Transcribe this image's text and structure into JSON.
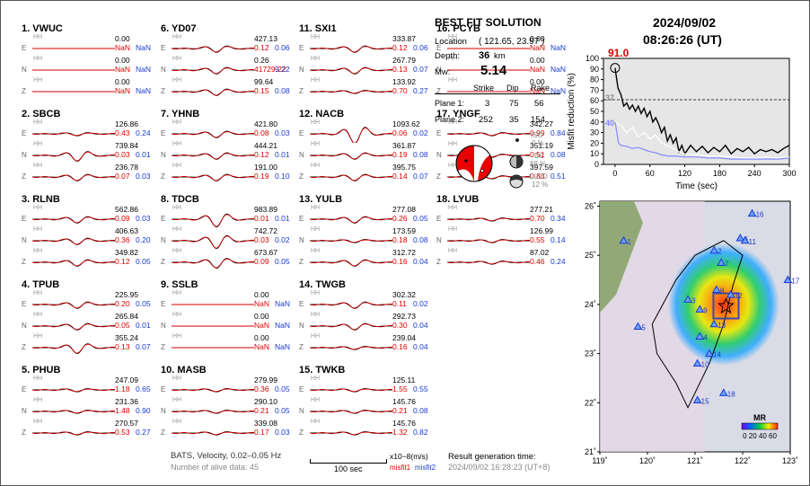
{
  "stations": [
    {
      "title": "1.  VWUC",
      "c": [
        {
          "amp": "0.00",
          "m1": "NaN",
          "m2": "NaN",
          "w": 0
        },
        {
          "amp": "0.00",
          "m1": "NaN",
          "m2": "NaN",
          "w": 0
        },
        {
          "amp": "0.00",
          "m1": "NaN",
          "m2": "NaN",
          "w": 0
        }
      ]
    },
    {
      "title": "2.  SBCB",
      "c": [
        {
          "amp": "126.86",
          "m1": "0.43",
          "m2": "0.24",
          "w": 1
        },
        {
          "amp": "739.84",
          "m1": "0.03",
          "m2": "0.01",
          "w": 3
        },
        {
          "amp": "236.78",
          "m1": "0.07",
          "m2": "0.03",
          "w": 2
        }
      ]
    },
    {
      "title": "3.  RLNB",
      "c": [
        {
          "amp": "562.86",
          "m1": "0.09",
          "m2": "0.03",
          "w": 2
        },
        {
          "amp": "406.63",
          "m1": "0.36",
          "m2": "0.20",
          "w": 2
        },
        {
          "amp": "349.82",
          "m1": "0.12",
          "m2": "0.05",
          "w": 2
        }
      ]
    },
    {
      "title": "4.  TPUB",
      "c": [
        {
          "amp": "225.95",
          "m1": "0.20",
          "m2": "0.05",
          "w": 2
        },
        {
          "amp": "265.84",
          "m1": "0.05",
          "m2": "0.01",
          "w": 2
        },
        {
          "amp": "355.24",
          "m1": "0.13",
          "m2": "0.07",
          "w": 3
        }
      ]
    },
    {
      "title": "5.  PHUB",
      "c": [
        {
          "amp": "247.09",
          "m1": "1.18",
          "m2": "0.65",
          "w": 1
        },
        {
          "amp": "231.36",
          "m1": "1.48",
          "m2": "0.90",
          "w": 1
        },
        {
          "amp": "270.57",
          "m1": "0.53",
          "m2": "0.27",
          "w": 1
        }
      ]
    },
    {
      "title": "6.  YD07",
      "c": [
        {
          "amp": "427.13",
          "m1": "0.12",
          "m2": "0.06",
          "w": 2
        },
        {
          "amp": "0.26",
          "m1": "41729.22",
          "m2": "9.22",
          "w": 2
        },
        {
          "amp": "99.64",
          "m1": "0.15",
          "m2": "0.08",
          "w": 2
        }
      ]
    },
    {
      "title": "7.  YHNB",
      "c": [
        {
          "amp": "421.80",
          "m1": "0.08",
          "m2": "0.03",
          "w": 2
        },
        {
          "amp": "444.21",
          "m1": "0.12",
          "m2": "0.01",
          "w": 2
        },
        {
          "amp": "191.00",
          "m1": "0.19",
          "m2": "0.10",
          "w": 2
        }
      ]
    },
    {
      "title": "8.  TDCB",
      "c": [
        {
          "amp": "983.89",
          "m1": "0.01",
          "m2": "0.01",
          "w": 4
        },
        {
          "amp": "742.72",
          "m1": "0.03",
          "m2": "0.02",
          "w": 4
        },
        {
          "amp": "673.67",
          "m1": "0.09",
          "m2": "0.05",
          "w": 3
        }
      ]
    },
    {
      "title": "9.  SSLB",
      "c": [
        {
          "amp": "0.00",
          "m1": "NaN",
          "m2": "NaN",
          "w": 0
        },
        {
          "amp": "0.00",
          "m1": "NaN",
          "m2": "NaN",
          "w": 0
        },
        {
          "amp": "0.00",
          "m1": "NaN",
          "m2": "NaN",
          "w": 0
        }
      ]
    },
    {
      "title": "10. MASB",
      "c": [
        {
          "amp": "279.99",
          "m1": "0.36",
          "m2": "0.05",
          "w": 1
        },
        {
          "amp": "290.10",
          "m1": "0.21",
          "m2": "0.05",
          "w": 1
        },
        {
          "amp": "339.08",
          "m1": "0.17",
          "m2": "0.03",
          "w": 1
        }
      ]
    },
    {
      "title": "11. SXI1",
      "c": [
        {
          "amp": "333.87",
          "m1": "0.12",
          "m2": "0.06",
          "w": 2
        },
        {
          "amp": "267.79",
          "m1": "0.13",
          "m2": "0.07",
          "w": 2
        },
        {
          "amp": "133.92",
          "m1": "0.70",
          "m2": "0.27",
          "w": 1
        }
      ]
    },
    {
      "title": "12. NACB",
      "c": [
        {
          "amp": "1093.62",
          "m1": "0.06",
          "m2": "0.02",
          "w": 5
        },
        {
          "amp": "361.87",
          "m1": "0.19",
          "m2": "0.08",
          "w": 2
        },
        {
          "amp": "395.75",
          "m1": "0.14",
          "m2": "0.07",
          "w": 2
        }
      ]
    },
    {
      "title": "13. YULB",
      "c": [
        {
          "amp": "277.08",
          "m1": "0.26",
          "m2": "0.05",
          "w": 2
        },
        {
          "amp": "173.59",
          "m1": "0.18",
          "m2": "0.08",
          "w": 1
        },
        {
          "amp": "312.72",
          "m1": "0.16",
          "m2": "0.04",
          "w": 2
        }
      ]
    },
    {
      "title": "14. TWGB",
      "c": [
        {
          "amp": "302.32",
          "m1": "0.11",
          "m2": "0.02",
          "w": 2
        },
        {
          "amp": "292.73",
          "m1": "0.30",
          "m2": "0.04",
          "w": 2
        },
        {
          "amp": "239.04",
          "m1": "0.16",
          "m2": "0.04",
          "w": 1
        }
      ]
    },
    {
      "title": "15. TWKB",
      "c": [
        {
          "amp": "125.11",
          "m1": "1.55",
          "m2": "0.55",
          "w": 1
        },
        {
          "amp": "145.76",
          "m1": "0.21",
          "m2": "0.08",
          "w": 1
        },
        {
          "amp": "145.76",
          "m1": "1.32",
          "m2": "0.82",
          "w": 1
        }
      ]
    },
    {
      "title": "16. PCYB",
      "c": [
        {
          "amp": "0.00",
          "m1": "NaN",
          "m2": "NaN",
          "w": 0
        },
        {
          "amp": "0.00",
          "m1": "NaN",
          "m2": "NaN",
          "w": 0
        },
        {
          "amp": "0.00",
          "m1": "NaN",
          "m2": "NaN",
          "w": 0
        }
      ]
    },
    {
      "title": "17. YNGF",
      "c": [
        {
          "amp": "342.27",
          "m1": "0.99",
          "m2": "0.84",
          "w": 1
        },
        {
          "amp": "351.19",
          "m1": "0.51",
          "m2": "0.08",
          "w": 1
        },
        {
          "amp": "397.59",
          "m1": "0.83",
          "m2": "0.51",
          "w": 1
        }
      ]
    },
    {
      "title": "18. LYUB",
      "c": [
        {
          "amp": "277.21",
          "m1": "0.70",
          "m2": "0.34",
          "w": 1
        },
        {
          "amp": "126.99",
          "m1": "0.55",
          "m2": "0.14",
          "w": 1
        },
        {
          "amp": "87.02",
          "m1": "0.46",
          "m2": "0.24",
          "w": 1
        }
      ]
    }
  ],
  "components": [
    "E",
    "N",
    "Z"
  ],
  "channel": "HH",
  "solution": {
    "heading": "BEST FIT SOLUTION",
    "location_label": "Location",
    "location_value": "( 121.65, 23.97 )",
    "depth_label": "Depth:",
    "depth_value": "36",
    "depth_unit": "km",
    "mw_label": "Mw:",
    "mw_value": "5.14",
    "col_strike": "Strike",
    "col_dip": "Dip",
    "col_rake": "Rake",
    "plane1_label": "Plane 1:",
    "plane1": [
      "3",
      "75",
      "56"
    ],
    "plane2_label": "Plane 2:",
    "plane2": [
      "252",
      "35",
      "154"
    ],
    "iso_label": "ISO",
    "iso_value": "0 %",
    "dc_label": "DC",
    "dc_value": "88 %",
    "clvd_label": "CLVD",
    "clvd_value": "12 %"
  },
  "footer": {
    "line1": "BATS, Velocity, 0.02–0.05 Hz",
    "line2": "Number of alive data: 45",
    "scale_label": "100 sec",
    "unit": "x10−8(m/s)",
    "misfit1": "misfit1",
    "misfit2": "misfit2",
    "result_label": "Result generation time:",
    "result_time": "2024/09/02 16:28:23 (UT+8)"
  },
  "header": {
    "date": "2024/09/02",
    "time": "08:26:26  (UT)"
  },
  "chart_data": {
    "type": "line",
    "ylabel": "Misfit reduction (%)",
    "xlabel": "Time (sec)",
    "xlim": [
      -20,
      300
    ],
    "ylim": [
      0,
      100
    ],
    "xticks": [
      0,
      60,
      120,
      180,
      240,
      300
    ],
    "yticks": [
      0,
      10,
      20,
      30,
      40,
      50,
      60,
      70,
      80,
      90,
      100
    ],
    "peak_label": "91.0",
    "ref_labels": [
      "37",
      "40"
    ],
    "ref_line": 61,
    "series": [
      {
        "color": "#000000",
        "x": [
          0,
          5,
          10,
          15,
          20,
          25,
          30,
          35,
          40,
          45,
          50,
          55,
          60,
          65,
          70,
          75,
          80,
          85,
          90,
          95,
          100,
          105,
          110,
          115,
          120,
          130,
          140,
          150,
          160,
          170,
          180,
          190,
          200,
          210,
          220,
          230,
          240,
          250,
          260,
          270,
          280,
          290,
          300
        ],
        "y": [
          91,
          72,
          66,
          55,
          58,
          52,
          56,
          50,
          55,
          48,
          53,
          45,
          50,
          40,
          44,
          38,
          30,
          35,
          22,
          28,
          20,
          25,
          12,
          18,
          10,
          18,
          12,
          17,
          11,
          16,
          12,
          18,
          10,
          15,
          12,
          16,
          10,
          14,
          12,
          14,
          11,
          15,
          18
        ]
      },
      {
        "color": "#ffffff",
        "x": [
          0,
          10,
          20,
          30,
          40,
          50,
          60,
          70,
          80,
          90,
          100,
          110,
          120,
          140,
          160,
          180,
          200,
          220,
          240,
          260,
          280,
          300
        ],
        "y": [
          40,
          37,
          30,
          35,
          26,
          30,
          24,
          28,
          20,
          18,
          15,
          12,
          10,
          9,
          8,
          8,
          7,
          6,
          6,
          7,
          6,
          7
        ]
      },
      {
        "color": "#8888ff",
        "x": [
          0,
          3,
          6,
          10,
          20,
          30,
          40,
          50,
          60,
          70,
          80,
          90,
          100,
          120,
          140,
          160,
          180,
          200,
          220,
          240,
          260,
          280,
          300
        ],
        "y": [
          40,
          30,
          20,
          18,
          17,
          15,
          16,
          14,
          12,
          11,
          9,
          8,
          8,
          7,
          7,
          6,
          6,
          5,
          5,
          5,
          5,
          5,
          6
        ]
      }
    ]
  },
  "map": {
    "x_ticks": [
      "119˚",
      "120˚",
      "121˚",
      "122˚",
      "123˚"
    ],
    "y_ticks": [
      "26˚",
      "25˚",
      "24˚",
      "23˚",
      "22˚",
      "21˚"
    ],
    "stations": [
      {
        "id": "1",
        "lon": 119.5,
        "lat": 25.3
      },
      {
        "id": "2",
        "lon": 121.4,
        "lat": 25.1
      },
      {
        "id": "3",
        "lon": 120.85,
        "lat": 24.1
      },
      {
        "id": "4",
        "lon": 121.1,
        "lat": 23.35
      },
      {
        "id": "5",
        "lon": 119.8,
        "lat": 23.55
      },
      {
        "id": "6",
        "lon": 121.95,
        "lat": 25.35
      },
      {
        "id": "7",
        "lon": 121.55,
        "lat": 24.85
      },
      {
        "id": "8",
        "lon": 121.45,
        "lat": 24.3
      },
      {
        "id": "9",
        "lon": 121.1,
        "lat": 23.9
      },
      {
        "id": "10",
        "lon": 121.05,
        "lat": 22.8
      },
      {
        "id": "11",
        "lon": 122.05,
        "lat": 25.3
      },
      {
        "id": "12",
        "lon": 121.75,
        "lat": 24.2
      },
      {
        "id": "13",
        "lon": 121.4,
        "lat": 23.6
      },
      {
        "id": "14",
        "lon": 121.3,
        "lat": 23.0
      },
      {
        "id": "15",
        "lon": 121.05,
        "lat": 22.05
      },
      {
        "id": "16",
        "lon": 122.2,
        "lat": 25.85
      },
      {
        "id": "17",
        "lon": 122.95,
        "lat": 24.5
      },
      {
        "id": "18",
        "lon": 121.6,
        "lat": 22.2
      }
    ],
    "legend_title": "MR",
    "legend_ticks": "0 20 40 60",
    "epicenter": {
      "lon": 121.65,
      "lat": 23.97
    }
  }
}
